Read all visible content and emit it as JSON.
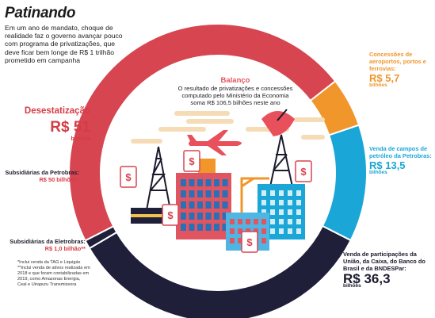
{
  "header": {
    "title": "Patinando",
    "intro": "Em um ano de mandato, choque de realidade faz o governo avançar pouco com programa de privatizações, que deve ficar bem longe de R$ 1 trilhão prometido em campanha"
  },
  "balance": {
    "title": "Balanço",
    "text": "O resultado de privatizações e concessões computado pelo Ministério da Economia soma R$ 106,5 bilhões neste ano"
  },
  "labels": {
    "desest_name": "Desestatização",
    "desest_value": "R$ 51",
    "desest_unit": "bilhões",
    "petro_sub_name": "Subsidiárias da Petrobras:",
    "petro_sub_value": "R$ 50 bilhões*",
    "eletro_name": "Subsidiárias da Eletrobras:",
    "eletro_value": "R$ 1,0 bilhão**",
    "footnote1": "*Inclui venda da TAG e Liquigás",
    "footnote2": "**Inclui venda de ativos realizada em 2018 e que foram contabilizadas em 2019, como Amazonas Energia, Ceal e Uirapuru Transmissora",
    "concess_name": "Concessões de aeroportos, portos e ferrovias:",
    "concess_value": "R$ 5,7",
    "concess_unit": "bilhões",
    "campos_name": "Venda de campos de petróleo da Petrobras:",
    "campos_value": "R$ 13,5",
    "campos_unit": "bilhões",
    "partic_name": "Venda de participações da União, da Caixa, do Banco do Brasil e da BNDESPar:",
    "partic_value": "R$ 36,3",
    "partic_unit": "bilhões"
  },
  "colors": {
    "red": "#d64550",
    "orange": "#f0962a",
    "blue": "#1aa6d6",
    "navy": "#1f1f3a",
    "yellow": "#f2c14e",
    "dark": "#1b1b2e"
  },
  "chart_data": {
    "type": "pie",
    "total": 106.5,
    "unit": "R$ bilhões",
    "slices": [
      {
        "key": "concess",
        "value": 5.7,
        "color": "#f0962a"
      },
      {
        "key": "campos",
        "value": 13.5,
        "color": "#1aa6d6"
      },
      {
        "key": "partic",
        "value": 36.3,
        "color": "#1f1f3a"
      },
      {
        "key": "eletro",
        "value": 1.0,
        "color": "#1f1f3a"
      },
      {
        "key": "petro_sub",
        "value": 50.0,
        "color": "#d64550"
      }
    ]
  }
}
